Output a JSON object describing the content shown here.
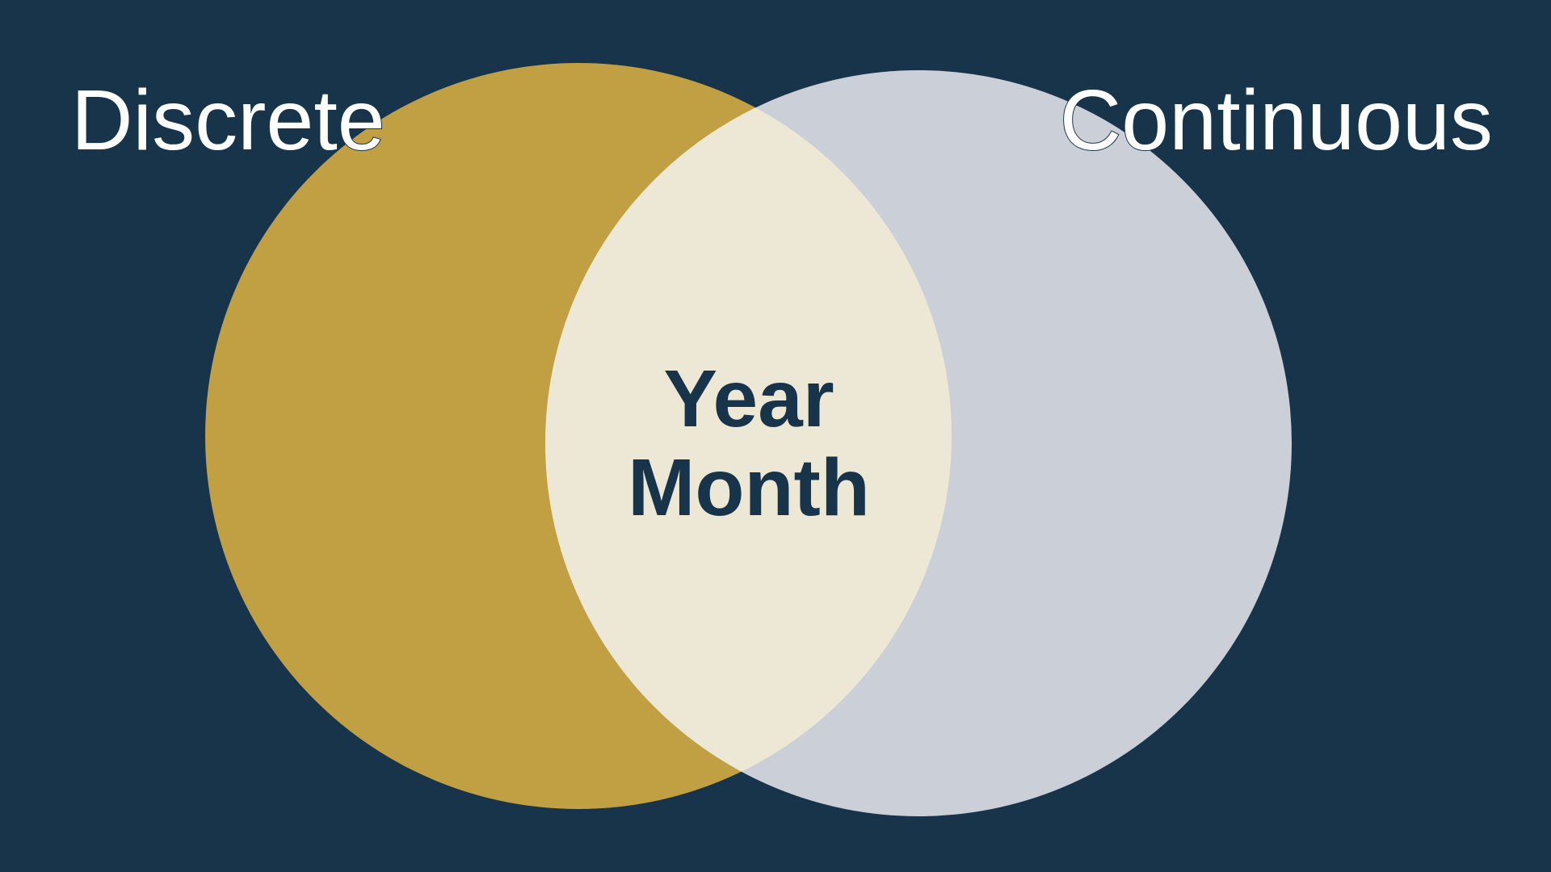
{
  "colors": {
    "background": "#17344B",
    "discrete_circle": "#C0A042",
    "continuous_circle": "#CBD0D8",
    "intersection": "#EDE7D6",
    "label_text": "#FFFFFF",
    "label_outline": "#17344B",
    "center_text": "#17344B"
  },
  "diagram": {
    "left_set": {
      "label": "Discrete"
    },
    "right_set": {
      "label": "Continuous"
    },
    "intersection": {
      "items": [
        "Year",
        "Month"
      ]
    }
  }
}
